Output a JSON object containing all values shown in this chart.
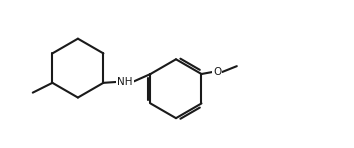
{
  "background_color": "#ffffff",
  "line_color": "#1a1a1a",
  "line_width": 1.5,
  "font_size": 7.5,
  "NH_label": "NH",
  "O_label": "O"
}
